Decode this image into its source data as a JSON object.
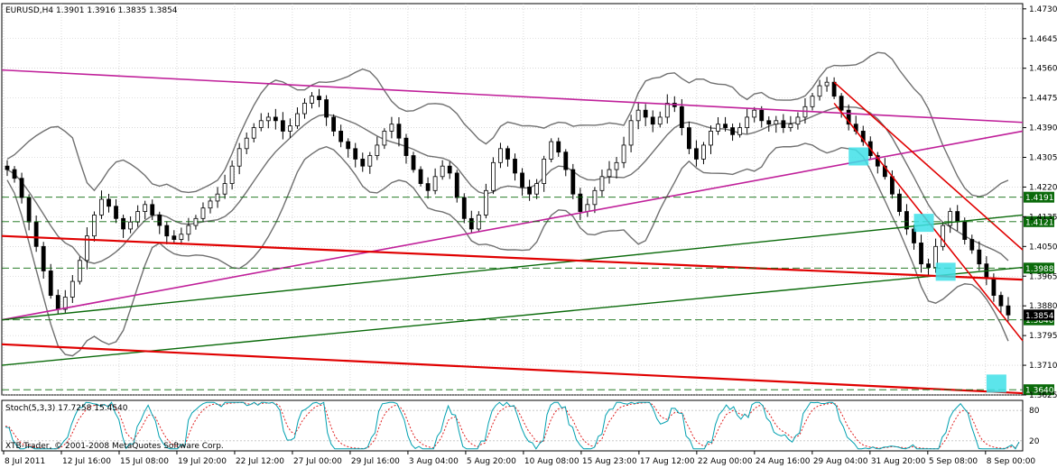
{
  "window": {
    "symbol_header": "EURUSD,H4  1.3901 1.3916 1.3835 1.3854",
    "copyright": "XTB-Trader, © 2001-2008 MetaQuotes Software Corp.",
    "stoch_header": "Stoch(5,3,3) 17.7258 15.4540"
  },
  "colors": {
    "background": "#ffffff",
    "grid": "#c0c0c0",
    "candles": "#000000",
    "bollinger": "#707070",
    "red_lines": "#e00000",
    "magenta_lines": "#c0209a",
    "green_lines": "#0a6a0a",
    "highlight": "#40e0e8",
    "stoch_main": "#00a0b0",
    "stoch_signal": "#e02020"
  },
  "chart_data": [
    {
      "type": "candlestick",
      "symbol": "EURUSD",
      "timeframe": "H4",
      "last_bar": {
        "open": 1.3901,
        "high": 1.3916,
        "low": 1.3835,
        "close": 1.3854
      },
      "ylim": [
        1.3625,
        1.4745
      ],
      "y_ticks": [
        "1.4730",
        "1.4645",
        "1.4560",
        "1.4475",
        "1.4390",
        "1.4305",
        "1.4220",
        "1.4135",
        "1.4050",
        "1.3965",
        "1.3880",
        "1.3795",
        "1.3710",
        "1.3625"
      ],
      "x_ticks": [
        "8 Jul 2011",
        "12 Jul 16:00",
        "15 Jul 08:00",
        "19 Jul 20:00",
        "22 Jul 12:00",
        "27 Jul 00:00",
        "29 Jul 16:00",
        "3 Aug 04:00",
        "5 Aug 20:00",
        "10 Aug 08:00",
        "15 Aug 23:00",
        "17 Aug 12:00",
        "22 Aug 00:00",
        "24 Aug 16:00",
        "29 Aug 04:00",
        "31 Aug 20:00",
        "5 Sep 08:00",
        "8 Sep 00:00"
      ],
      "price_levels": [
        {
          "value": 1.4191,
          "label": "1.4191",
          "boxed": true
        },
        {
          "value": 1.4121,
          "label": "1.4121",
          "boxed": true
        },
        {
          "value": 1.3988,
          "label": "1.3988",
          "boxed": true
        },
        {
          "value": 1.384,
          "label": "1.3840",
          "boxed": true
        },
        {
          "value": 1.364,
          "label": "1.3640",
          "boxed": true
        }
      ],
      "current_price": {
        "value": 1.3854,
        "label": "1.3854"
      },
      "close_series": [
        1.427,
        1.4245,
        1.419,
        1.412,
        1.405,
        1.398,
        1.391,
        1.387,
        1.3905,
        1.395,
        1.401,
        1.408,
        1.414,
        1.4185,
        1.4165,
        1.413,
        1.41,
        1.412,
        1.415,
        1.417,
        1.414,
        1.411,
        1.408,
        1.407,
        1.4085,
        1.411,
        1.413,
        1.416,
        1.418,
        1.42,
        1.423,
        1.428,
        1.433,
        1.436,
        1.439,
        1.441,
        1.442,
        1.441,
        1.438,
        1.4395,
        1.443,
        1.446,
        1.448,
        1.447,
        1.442,
        1.438,
        1.435,
        1.433,
        1.43,
        1.428,
        1.431,
        1.434,
        1.438,
        1.44,
        1.436,
        1.431,
        1.427,
        1.423,
        1.421,
        1.425,
        1.428,
        1.426,
        1.419,
        1.413,
        1.41,
        1.414,
        1.421,
        1.429,
        1.433,
        1.43,
        1.426,
        1.422,
        1.42,
        1.423,
        1.43,
        1.435,
        1.432,
        1.427,
        1.42,
        1.415,
        1.417,
        1.421,
        1.425,
        1.427,
        1.429,
        1.434,
        1.441,
        1.444,
        1.442,
        1.44,
        1.442,
        1.446,
        1.445,
        1.439,
        1.433,
        1.43,
        1.434,
        1.438,
        1.44,
        1.439,
        1.437,
        1.439,
        1.442,
        1.444,
        1.441,
        1.44,
        1.441,
        1.439,
        1.44,
        1.442,
        1.445,
        1.448,
        1.451,
        1.452,
        1.448,
        1.444,
        1.44,
        1.438,
        1.435,
        1.431,
        1.428,
        1.425,
        1.42,
        1.415,
        1.41,
        1.406,
        1.4,
        1.399,
        1.405,
        1.411,
        1.415,
        1.412,
        1.407,
        1.404,
        1.4,
        1.396,
        1.391,
        1.388,
        1.3854
      ]
    },
    {
      "type": "line",
      "indicator": "Stochastic",
      "params": "5,3,3",
      "main_value": 17.7258,
      "signal_value": 15.454,
      "ylim": [
        0,
        100
      ],
      "y_ticks": [
        "80",
        "20"
      ]
    }
  ]
}
